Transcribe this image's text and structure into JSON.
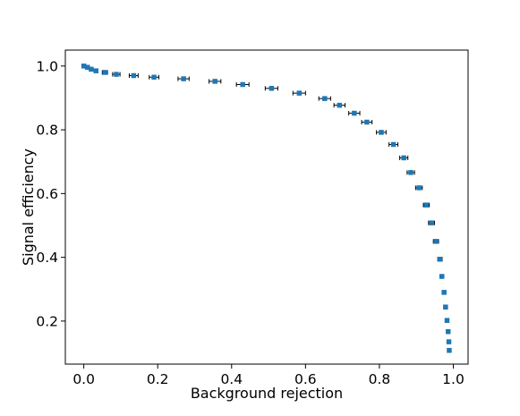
{
  "chart_data": {
    "type": "scatter",
    "xlabel": "Background rejection",
    "ylabel": "Signal efficiency",
    "xlim": [
      -0.05,
      1.04
    ],
    "ylim": [
      0.065,
      1.05
    ],
    "xticks": [
      0.0,
      0.2,
      0.4,
      0.6,
      0.8,
      1.0
    ],
    "yticks": [
      0.2,
      0.4,
      0.6,
      0.8,
      1.0
    ],
    "xtick_labels": [
      "0.0",
      "0.2",
      "0.4",
      "0.6",
      "0.8",
      "1.0"
    ],
    "ytick_labels": [
      "0.2",
      "0.4",
      "0.6",
      "0.8",
      "1.0"
    ],
    "grid": false,
    "marker": "square",
    "color": "#1f77b4",
    "errorbar_color": "#000000",
    "points": [
      {
        "x": 0.0,
        "y": 1.0,
        "xerr": 0.0
      },
      {
        "x": 0.01,
        "y": 0.996,
        "xerr": 0.003
      },
      {
        "x": 0.02,
        "y": 0.99,
        "xerr": 0.004
      },
      {
        "x": 0.033,
        "y": 0.985,
        "xerr": 0.005
      },
      {
        "x": 0.057,
        "y": 0.98,
        "xerr": 0.007
      },
      {
        "x": 0.088,
        "y": 0.974,
        "xerr": 0.01
      },
      {
        "x": 0.135,
        "y": 0.97,
        "xerr": 0.012
      },
      {
        "x": 0.19,
        "y": 0.965,
        "xerr": 0.013
      },
      {
        "x": 0.27,
        "y": 0.96,
        "xerr": 0.015
      },
      {
        "x": 0.355,
        "y": 0.952,
        "xerr": 0.016
      },
      {
        "x": 0.43,
        "y": 0.942,
        "xerr": 0.017
      },
      {
        "x": 0.508,
        "y": 0.93,
        "xerr": 0.017
      },
      {
        "x": 0.583,
        "y": 0.915,
        "xerr": 0.017
      },
      {
        "x": 0.652,
        "y": 0.898,
        "xerr": 0.016
      },
      {
        "x": 0.692,
        "y": 0.877,
        "xerr": 0.015
      },
      {
        "x": 0.732,
        "y": 0.852,
        "xerr": 0.015
      },
      {
        "x": 0.766,
        "y": 0.824,
        "xerr": 0.014
      },
      {
        "x": 0.805,
        "y": 0.792,
        "xerr": 0.013
      },
      {
        "x": 0.838,
        "y": 0.754,
        "xerr": 0.012
      },
      {
        "x": 0.866,
        "y": 0.712,
        "xerr": 0.011
      },
      {
        "x": 0.885,
        "y": 0.666,
        "xerr": 0.01
      },
      {
        "x": 0.907,
        "y": 0.618,
        "xerr": 0.009
      },
      {
        "x": 0.927,
        "y": 0.564,
        "xerr": 0.008
      },
      {
        "x": 0.941,
        "y": 0.508,
        "xerr": 0.008
      },
      {
        "x": 0.953,
        "y": 0.45,
        "xerr": 0.007
      },
      {
        "x": 0.964,
        "y": 0.394,
        "xerr": 0.006
      },
      {
        "x": 0.969,
        "y": 0.34,
        "xerr": 0.005
      },
      {
        "x": 0.975,
        "y": 0.29,
        "xerr": 0.004
      },
      {
        "x": 0.979,
        "y": 0.244,
        "xerr": 0.004
      },
      {
        "x": 0.983,
        "y": 0.202,
        "xerr": 0.003
      },
      {
        "x": 0.986,
        "y": 0.167,
        "xerr": 0.003
      },
      {
        "x": 0.988,
        "y": 0.135,
        "xerr": 0.002
      },
      {
        "x": 0.989,
        "y": 0.108,
        "xerr": 0.002
      }
    ]
  }
}
